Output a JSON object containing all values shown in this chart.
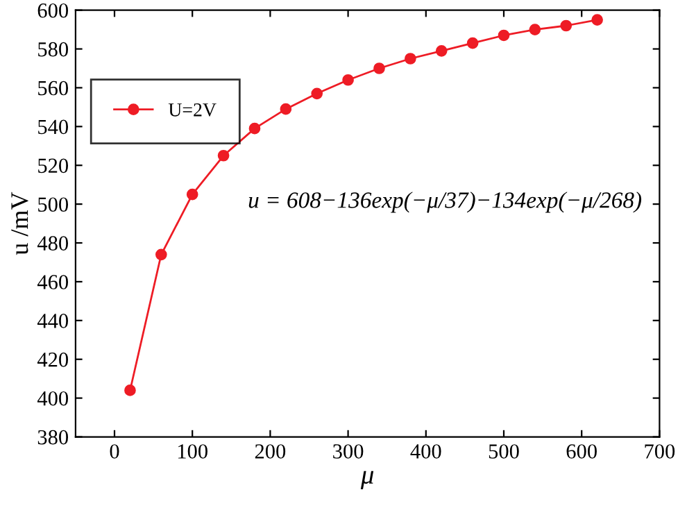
{
  "chart_data": {
    "type": "line",
    "xlabel": "μ",
    "ylabel": "u /mV",
    "annotations": [
      "u = 608−136exp(−μ/37)−134exp(−μ/268)"
    ],
    "series": [
      {
        "name": "U=2V",
        "color": "#ee1c25",
        "x": [
          20,
          60,
          100,
          140,
          180,
          220,
          260,
          300,
          340,
          380,
          420,
          460,
          500,
          540,
          580,
          620
        ],
        "values": [
          404,
          474,
          505,
          525,
          539,
          549,
          557,
          564,
          570,
          575,
          579,
          583,
          587,
          590,
          592,
          595
        ]
      }
    ],
    "xlim": [
      -50,
      700
    ],
    "xticks": [
      0,
      100,
      200,
      300,
      400,
      500,
      600,
      700
    ],
    "ylim": [
      380,
      600
    ],
    "yticks": [
      380,
      400,
      420,
      440,
      460,
      480,
      500,
      520,
      540,
      560,
      580,
      600
    ],
    "legend": "top left",
    "marker": "circle",
    "line_style": "solid",
    "grid": false
  }
}
